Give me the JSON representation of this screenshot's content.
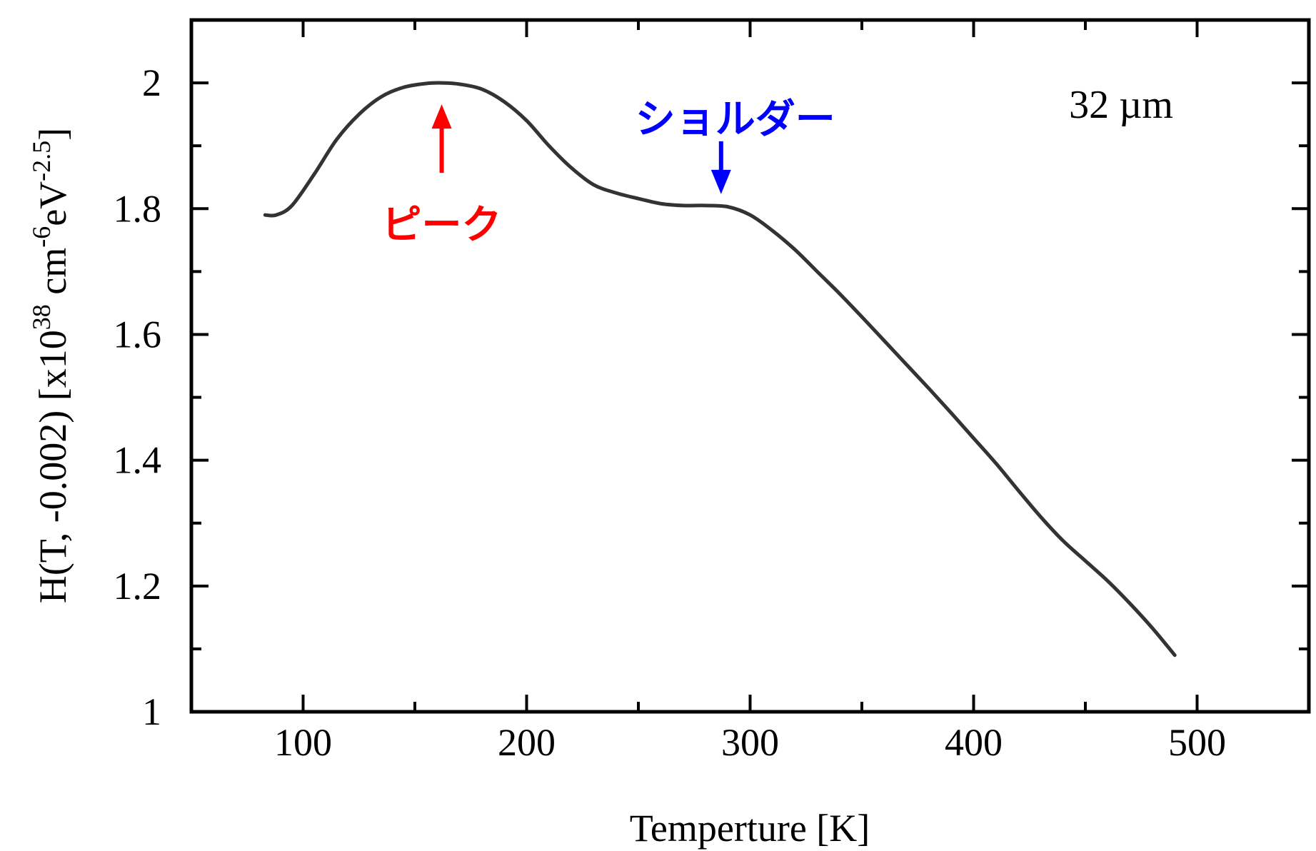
{
  "chart_data": {
    "type": "line",
    "title": "",
    "xlabel": "Temperture  [K]",
    "ylabel": {
      "main": "H(T, -0.002)   [x10",
      "exp1": "38",
      "unit": "   cm",
      "exp2": "-6",
      "unit2": "eV",
      "exp3": "-2.5",
      "close": "]"
    },
    "xlim": [
      50,
      550
    ],
    "ylim": [
      1.0,
      2.1
    ],
    "xticks": [
      100,
      200,
      300,
      400,
      500
    ],
    "xtick_labels": [
      "100",
      "200",
      "300",
      "400",
      "500"
    ],
    "yticks": [
      1.0,
      1.2,
      1.4,
      1.6,
      1.8,
      2.0
    ],
    "ytick_labels": [
      "1",
      "1.2",
      "1.4",
      "1.6",
      "1.8",
      "2"
    ],
    "grid": false,
    "series": [
      {
        "color": "#333333",
        "x": [
          83,
          88,
          95,
          105,
          115,
          125,
          135,
          145,
          155,
          162,
          170,
          180,
          190,
          200,
          210,
          220,
          230,
          240,
          250,
          260,
          270,
          280,
          290,
          300,
          310,
          320,
          330,
          340,
          350,
          360,
          370,
          380,
          390,
          400,
          410,
          420,
          430,
          440,
          450,
          460,
          470,
          480,
          490
        ],
        "y": [
          1.79,
          1.79,
          1.805,
          1.855,
          1.91,
          1.95,
          1.978,
          1.993,
          1.999,
          2.0,
          1.998,
          1.99,
          1.97,
          1.94,
          1.9,
          1.865,
          1.838,
          1.825,
          1.816,
          1.808,
          1.805,
          1.805,
          1.803,
          1.79,
          1.765,
          1.735,
          1.7,
          1.665,
          1.628,
          1.59,
          1.552,
          1.514,
          1.475,
          1.435,
          1.395,
          1.352,
          1.31,
          1.272,
          1.24,
          1.208,
          1.172,
          1.133,
          1.09
        ]
      }
    ],
    "annotations": [
      {
        "text": "ピーク",
        "color": "#ff0000",
        "arrow_direction": "up",
        "target": [
          162,
          2.0
        ]
      },
      {
        "text": "ショルダー",
        "color": "#0000ff",
        "arrow_direction": "down",
        "target": [
          287,
          1.805
        ]
      }
    ],
    "inset_text": "32 µm"
  }
}
